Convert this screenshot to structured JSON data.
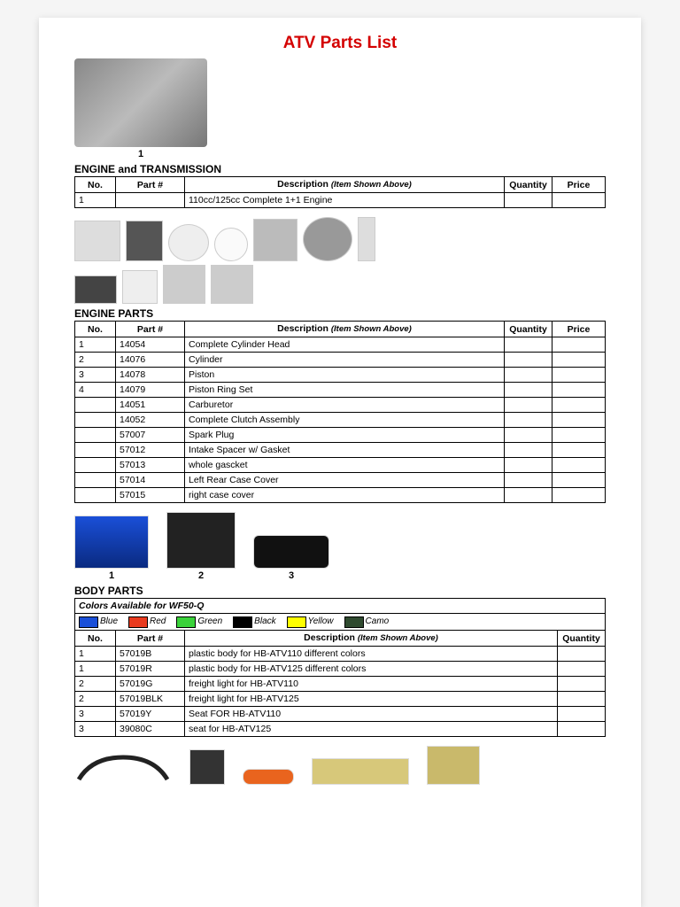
{
  "title": "ATV Parts List",
  "sections": {
    "engine_trans": {
      "header": "ENGINE and TRANSMISSION",
      "columns": {
        "no": "No.",
        "part": "Part #",
        "desc": "Description",
        "desc_sub": "(Item Shown Above)",
        "qty": "Quantity",
        "price": "Price"
      },
      "rows": [
        {
          "no": "1",
          "part": "",
          "desc": "110cc/125cc Complete 1+1 Engine",
          "qty": "",
          "price": ""
        }
      ]
    },
    "engine_parts": {
      "header": "ENGINE PARTS",
      "columns": {
        "no": "No.",
        "part": "Part #",
        "desc": "Description",
        "desc_sub": "(Item Shown Above)",
        "qty": "Quantity",
        "price": "Price"
      },
      "rows": [
        {
          "no": "1",
          "part": "14054",
          "desc": "Complete Cylinder Head",
          "qty": "",
          "price": ""
        },
        {
          "no": "2",
          "part": "14076",
          "desc": "Cylinder",
          "qty": "",
          "price": ""
        },
        {
          "no": "3",
          "part": "14078",
          "desc": "Piston",
          "qty": "",
          "price": ""
        },
        {
          "no": "4",
          "part": "14079",
          "desc": "Piston Ring Set",
          "qty": "",
          "price": ""
        },
        {
          "no": "",
          "part": "14051",
          "desc": "Carburetor",
          "qty": "",
          "price": ""
        },
        {
          "no": "",
          "part": "14052",
          "desc": "Complete Clutch Assembly",
          "qty": "",
          "price": ""
        },
        {
          "no": "",
          "part": "57007",
          "desc": "Spark Plug",
          "qty": "",
          "price": ""
        },
        {
          "no": "",
          "part": "57012",
          "desc": "Intake Spacer w/ Gasket",
          "qty": "",
          "price": ""
        },
        {
          "no": "",
          "part": "57013",
          "desc": "whole gascket",
          "qty": "",
          "price": ""
        },
        {
          "no": "",
          "part": "57014",
          "desc": "Left Rear Case Cover",
          "qty": "",
          "price": ""
        },
        {
          "no": "",
          "part": "57015",
          "desc": "right case cover",
          "qty": "",
          "price": ""
        }
      ]
    },
    "body_parts": {
      "header": "BODY PARTS",
      "colors_label": "Colors Available for WF50-Q",
      "colors": [
        {
          "name": "Blue",
          "hex": "#1a4fd8"
        },
        {
          "name": "Red",
          "hex": "#e93a1e"
        },
        {
          "name": "Green",
          "hex": "#3ad23a"
        },
        {
          "name": "Black",
          "hex": "#000000"
        },
        {
          "name": "Yellow",
          "hex": "#ffff00"
        },
        {
          "name": "Camo",
          "hex": "#2f4a2f"
        }
      ],
      "columns": {
        "no": "No.",
        "part": "Part #",
        "desc": "Description",
        "desc_sub": "(Item Shown Above)",
        "qty": "Quantity"
      },
      "rows": [
        {
          "no": "1",
          "part": "57019B",
          "desc": "plastic body for HB-ATV110 different colors",
          "qty": ""
        },
        {
          "no": "1",
          "part": "57019R",
          "desc": "plastic body for HB-ATV125 different colors",
          "qty": ""
        },
        {
          "no": "2",
          "part": "57019G",
          "desc": "freight light for HB-ATV110",
          "qty": ""
        },
        {
          "no": "2",
          "part": "57019BLK",
          "desc": "freight light for HB-ATV125",
          "qty": ""
        },
        {
          "no": "3",
          "part": "57019Y",
          "desc": "Seat FOR HB-ATV110",
          "qty": ""
        },
        {
          "no": "3",
          "part": "39080C",
          "desc": "seat for HB-ATV125",
          "qty": ""
        }
      ]
    }
  },
  "image_labels": {
    "engine": "1",
    "body1": "1",
    "body2": "2",
    "body3": "3"
  }
}
